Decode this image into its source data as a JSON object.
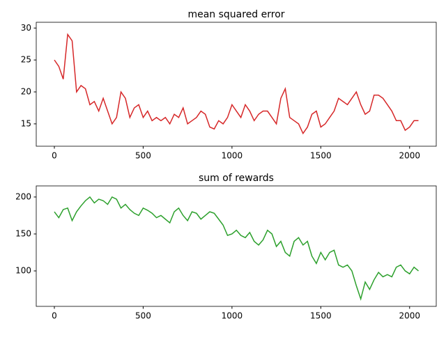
{
  "chart_data": [
    {
      "type": "line",
      "title": "mean squared error",
      "color": "#d62728",
      "x": [
        0,
        25,
        50,
        75,
        100,
        125,
        150,
        175,
        200,
        225,
        250,
        275,
        300,
        325,
        350,
        375,
        400,
        425,
        450,
        475,
        500,
        525,
        550,
        575,
        600,
        625,
        650,
        675,
        700,
        725,
        750,
        775,
        800,
        825,
        850,
        875,
        900,
        925,
        950,
        975,
        1000,
        1025,
        1050,
        1075,
        1100,
        1125,
        1150,
        1175,
        1200,
        1225,
        1250,
        1275,
        1300,
        1325,
        1350,
        1375,
        1400,
        1425,
        1450,
        1475,
        1500,
        1525,
        1550,
        1575,
        1600,
        1625,
        1650,
        1675,
        1700,
        1725,
        1750,
        1775,
        1800,
        1825,
        1850,
        1875,
        1900,
        1925,
        1950,
        1975,
        2000,
        2025,
        2050
      ],
      "values": [
        25,
        24,
        22,
        29,
        28,
        20,
        21,
        20.5,
        18,
        18.5,
        17,
        19,
        17,
        15,
        16,
        20,
        19,
        16,
        17.5,
        18,
        16,
        17,
        15.5,
        16,
        15.5,
        16,
        15,
        16.5,
        16,
        17.5,
        15,
        15.5,
        16,
        17,
        16.5,
        14.5,
        14.2,
        15.5,
        15,
        16,
        18,
        17,
        16,
        18,
        17,
        15.5,
        16.5,
        17,
        17,
        16,
        15,
        19,
        20.5,
        16,
        15.5,
        15,
        13.5,
        14.5,
        16.5,
        17,
        14.5,
        15,
        16,
        17,
        19,
        18.5,
        18,
        19,
        20,
        18,
        16.5,
        17,
        19.5,
        19.5,
        19,
        18,
        17,
        15.5,
        15.5,
        14,
        14.5,
        15.5,
        15.5
      ],
      "xlim": [
        -102,
        2150
      ],
      "ylim": [
        11.5,
        30.9
      ],
      "xticks": [
        0,
        500,
        1000,
        1500,
        2000
      ],
      "yticks": [
        15,
        20,
        25,
        30
      ]
    },
    {
      "type": "line",
      "title": "sum of rewards",
      "color": "#2ca02c",
      "x": [
        0,
        25,
        50,
        75,
        100,
        125,
        150,
        175,
        200,
        225,
        250,
        275,
        300,
        325,
        350,
        375,
        400,
        425,
        450,
        475,
        500,
        525,
        550,
        575,
        600,
        625,
        650,
        675,
        700,
        725,
        750,
        775,
        800,
        825,
        850,
        875,
        900,
        925,
        950,
        975,
        1000,
        1025,
        1050,
        1075,
        1100,
        1125,
        1150,
        1175,
        1200,
        1225,
        1250,
        1275,
        1300,
        1325,
        1350,
        1375,
        1400,
        1425,
        1450,
        1475,
        1500,
        1525,
        1550,
        1575,
        1600,
        1625,
        1650,
        1675,
        1700,
        1725,
        1750,
        1775,
        1800,
        1825,
        1850,
        1875,
        1900,
        1925,
        1950,
        1975,
        2000,
        2025,
        2050
      ],
      "values": [
        180,
        172,
        183,
        185,
        168,
        180,
        188,
        195,
        200,
        192,
        197,
        195,
        190,
        200,
        197,
        185,
        190,
        183,
        178,
        175,
        185,
        182,
        178,
        172,
        175,
        170,
        165,
        180,
        185,
        175,
        168,
        180,
        178,
        170,
        175,
        180,
        178,
        170,
        162,
        148,
        150,
        155,
        148,
        145,
        152,
        140,
        135,
        142,
        155,
        150,
        133,
        140,
        125,
        120,
        140,
        145,
        135,
        140,
        120,
        110,
        125,
        115,
        125,
        128,
        108,
        105,
        108,
        100,
        80,
        62,
        85,
        75,
        88,
        98,
        92,
        95,
        92,
        105,
        108,
        100,
        96,
        105,
        100
      ],
      "xlim": [
        -102,
        2150
      ],
      "ylim": [
        52,
        215
      ],
      "xticks": [
        0,
        500,
        1000,
        1500,
        2000
      ],
      "yticks": [
        100,
        150,
        200
      ]
    }
  ]
}
